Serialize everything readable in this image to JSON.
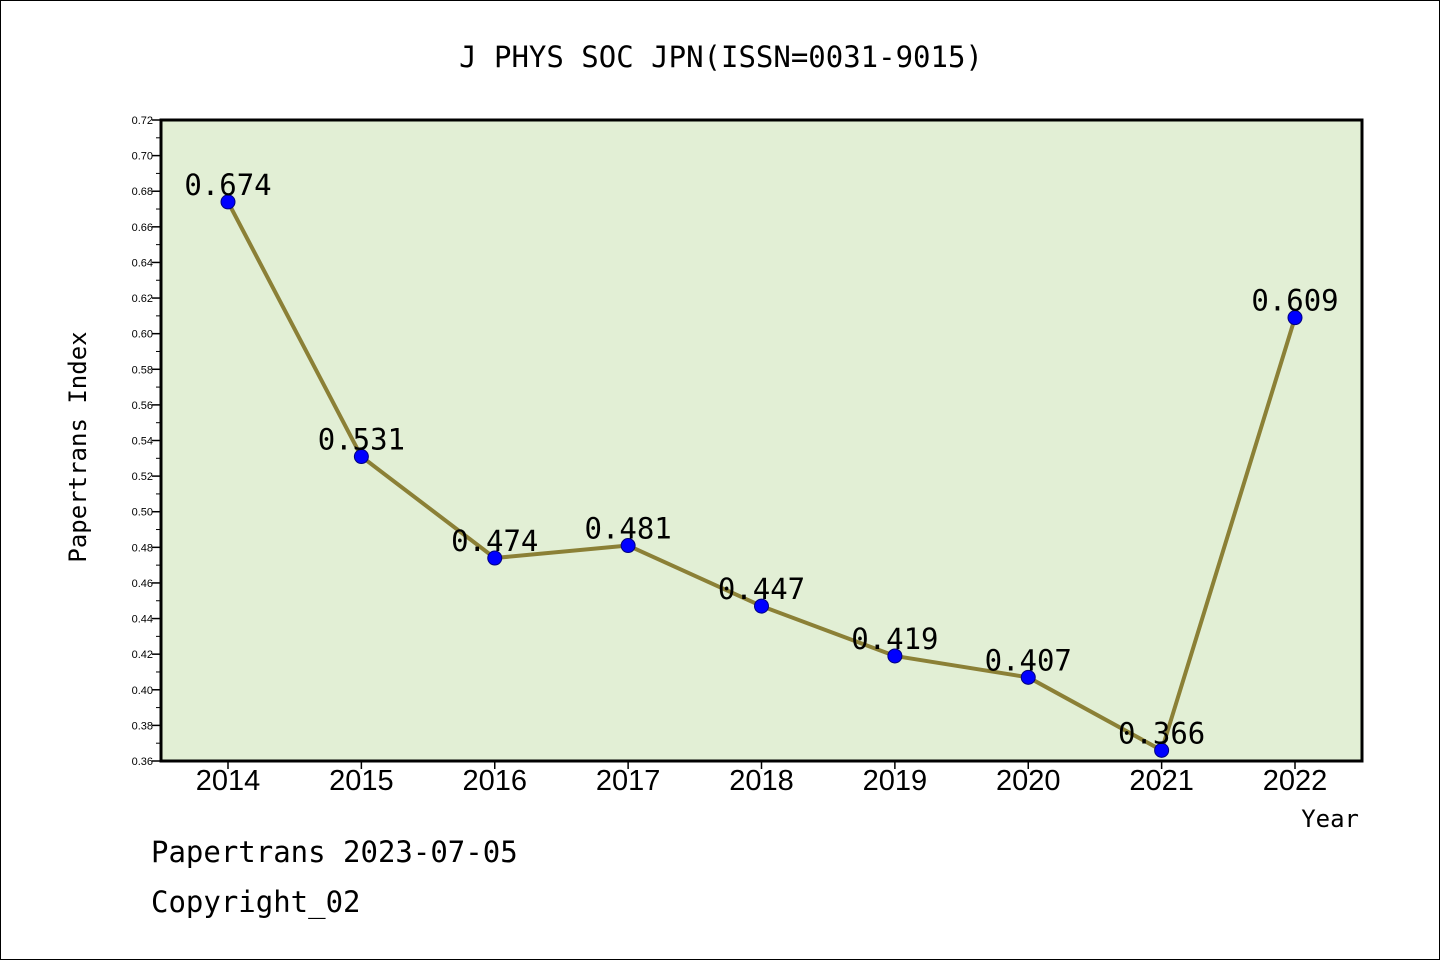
{
  "chart_data": {
    "type": "line",
    "title": "J PHYS SOC JPN(ISSN=0031-9015)",
    "xlabel": "Year",
    "ylabel": "Papertrans Index",
    "categories": [
      "2014",
      "2015",
      "2016",
      "2017",
      "2018",
      "2019",
      "2020",
      "2021",
      "2022"
    ],
    "series": [
      {
        "values": [
          0.674,
          0.531,
          0.474,
          0.481,
          0.447,
          0.419,
          0.407,
          0.366,
          0.609
        ],
        "data_labels": [
          "0.674",
          "0.531",
          "0.474",
          "0.481",
          "0.447",
          "0.419",
          "0.407",
          "0.366",
          "0.609"
        ]
      }
    ],
    "ylim": [
      0.36,
      0.72
    ],
    "yticks": [
      "0.36",
      "0.38",
      "0.40",
      "0.42",
      "0.44",
      "0.46",
      "0.48",
      "0.50",
      "0.52",
      "0.54",
      "0.56",
      "0.58",
      "0.60",
      "0.62",
      "0.64",
      "0.66",
      "0.68",
      "0.70",
      "0.72"
    ],
    "grid": false,
    "colors": {
      "plot_background": "#e2efd5",
      "line": "#8b8036",
      "marker_fill": "#0000ff",
      "marker_stroke": "#000080"
    }
  },
  "footer": {
    "line1": "Papertrans 2023-07-05",
    "line2": "Copyright_02"
  }
}
